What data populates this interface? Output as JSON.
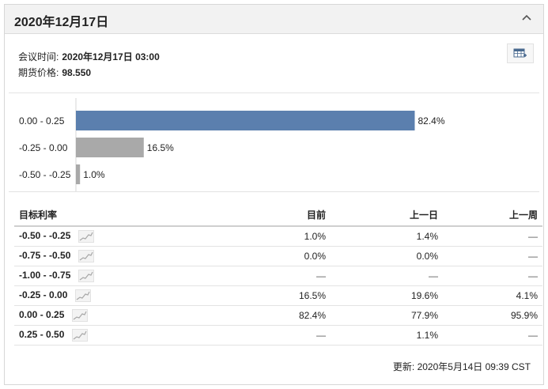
{
  "header": {
    "title": "2020年12月17日",
    "collapse_icon": "chevron-up-icon"
  },
  "meta": {
    "meeting_time_label": "会议时间:",
    "meeting_time_value": "2020年12月17日 03:00",
    "futures_price_label": "期货价格:",
    "futures_price_value": "98.550"
  },
  "table_view_icon": "table-add-icon",
  "colors": {
    "current_bar": "#5b7fae",
    "other_bar": "#a9a9a9"
  },
  "chart_data": {
    "type": "bar",
    "orientation": "horizontal",
    "categories": [
      "0.00 - 0.25",
      "-0.25 - 0.00",
      "-0.50 - -0.25"
    ],
    "values": [
      82.4,
      16.5,
      1.0
    ],
    "labels": [
      "82.4%",
      "16.5%",
      "1.0%"
    ],
    "xlim": [
      0,
      100
    ],
    "highlight_index": 0
  },
  "table": {
    "headers": [
      "目标利率",
      "目前",
      "上一日",
      "上一周"
    ],
    "rows": [
      {
        "rate": "-0.50 - -0.25",
        "current": "1.0%",
        "prev_day": "1.4%",
        "prev_week": "—"
      },
      {
        "rate": "-0.75 - -0.50",
        "current": "0.0%",
        "prev_day": "0.0%",
        "prev_week": "—"
      },
      {
        "rate": "-1.00 - -0.75",
        "current": "—",
        "prev_day": "—",
        "prev_week": "—"
      },
      {
        "rate": "-0.25 - 0.00",
        "current": "16.5%",
        "prev_day": "19.6%",
        "prev_week": "4.1%"
      },
      {
        "rate": "0.00 - 0.25",
        "current": "82.4%",
        "prev_day": "77.9%",
        "prev_week": "95.9%"
      },
      {
        "rate": "0.25 - 0.50",
        "current": "—",
        "prev_day": "1.1%",
        "prev_week": "—"
      }
    ],
    "trend_icon": "sparkline-icon"
  },
  "footer": {
    "updated": "更新: 2020年5月14日 09:39 CST"
  }
}
